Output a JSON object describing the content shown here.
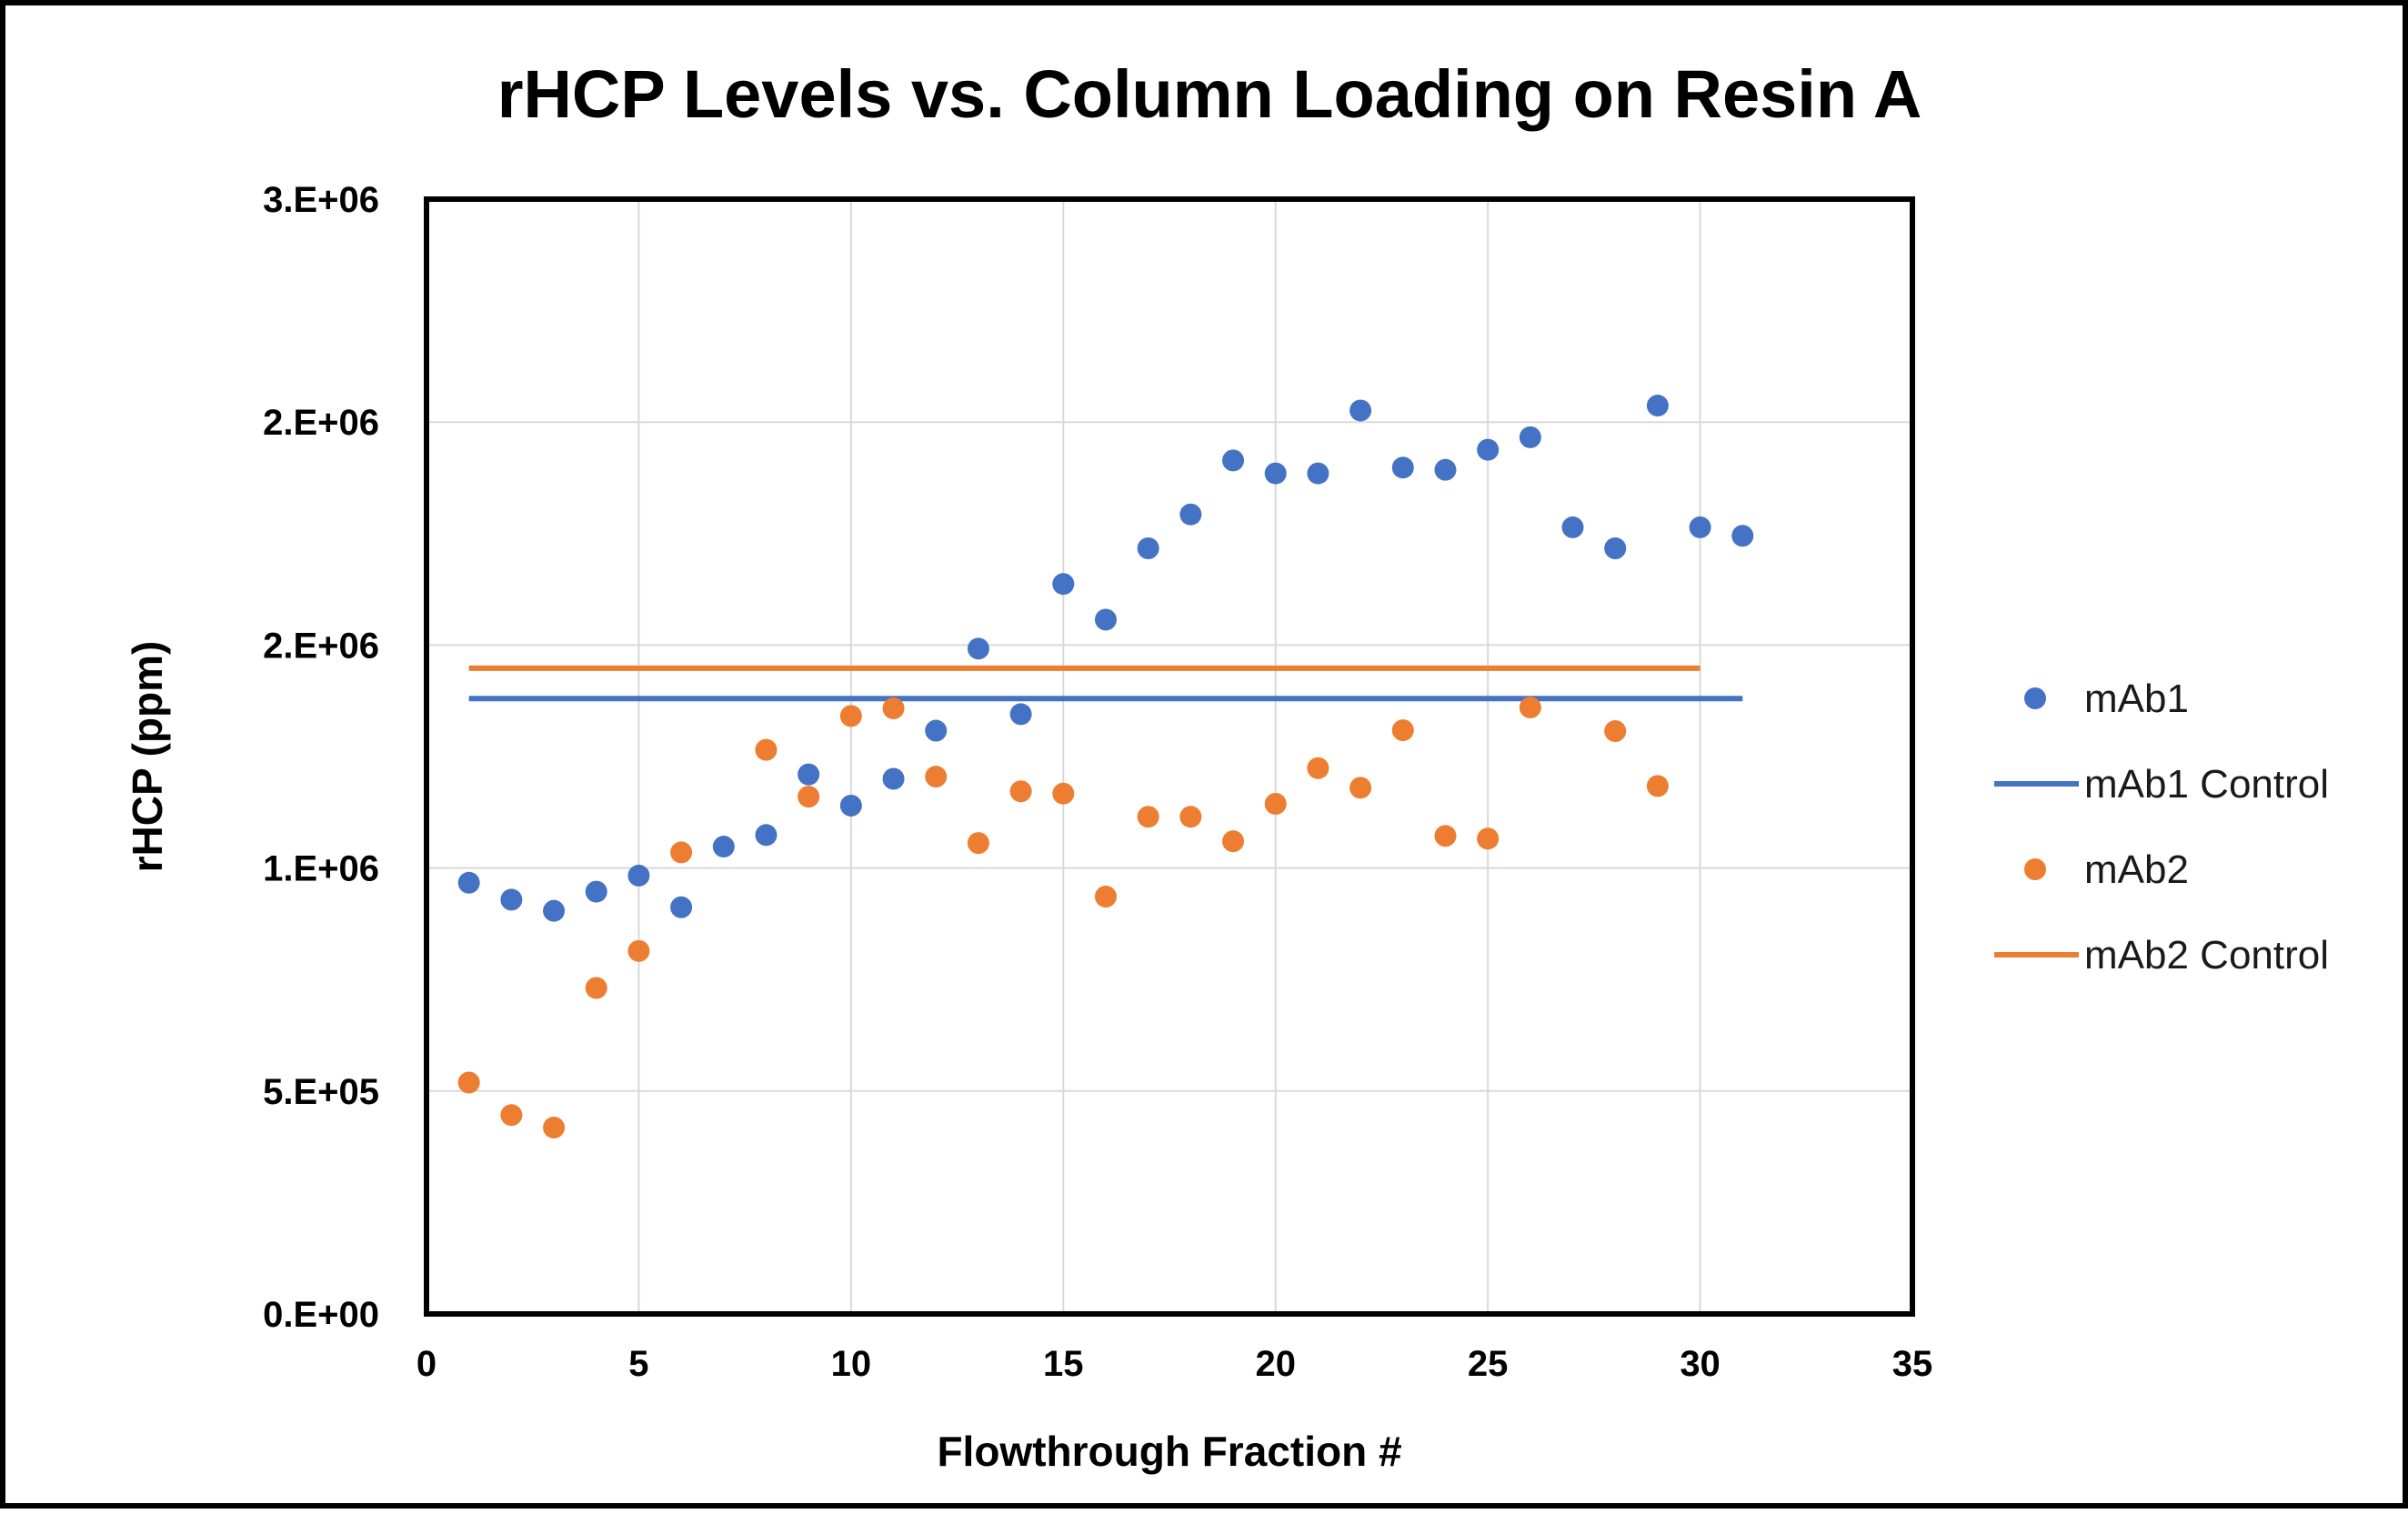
{
  "chart_data": {
    "type": "scatter",
    "title": "rHCP Levels vs. Column Loading on Resin A",
    "xlabel": "Flowthrough Fraction #",
    "ylabel": "rHCP (ppm)",
    "xlim": [
      0,
      35
    ],
    "ylim": [
      0,
      2500000
    ],
    "x_ticks": [
      0,
      5,
      10,
      15,
      20,
      25,
      30,
      35
    ],
    "x_tick_labels": [
      "0",
      "5",
      "10",
      "15",
      "20",
      "25",
      "30",
      "35"
    ],
    "y_ticks": [
      0,
      500000,
      1000000,
      1500000,
      2000000,
      2500000
    ],
    "y_tick_labels": [
      "0.E+00",
      "5.E+05",
      "1.E+06",
      "2.E+06",
      "2.E+06",
      "3.E+06"
    ],
    "grid": true,
    "legend_position": "right",
    "series": [
      {
        "name": "mAb1",
        "kind": "scatter",
        "color": "#4472C4",
        "x": [
          1,
          2,
          3,
          4,
          5,
          6,
          7,
          8,
          9,
          10,
          11,
          12,
          13,
          14,
          15,
          16,
          17,
          18,
          19,
          20,
          21,
          22,
          23,
          24,
          25,
          26,
          27,
          28,
          29,
          30,
          31
        ],
        "y": [
          967000,
          929000,
          904000,
          947000,
          983000,
          912000,
          1048000,
          1074000,
          1210000,
          1140000,
          1200000,
          1308000,
          1492000,
          1345000,
          1637000,
          1557000,
          1717000,
          1793000,
          1914000,
          1885000,
          1885000,
          2026000,
          1898000,
          1893000,
          1938000,
          1966000,
          1764000,
          1717000,
          2037000,
          1764000,
          1745000
        ]
      },
      {
        "name": "mAb1 Control",
        "kind": "line",
        "color": "#4472C4",
        "x": [
          1,
          31
        ],
        "y": [
          1380000,
          1380000
        ]
      },
      {
        "name": "mAb2",
        "kind": "scatter",
        "color": "#ED7D31",
        "x": [
          1,
          2,
          3,
          4,
          5,
          6,
          8,
          9,
          10,
          11,
          12,
          13,
          14,
          15,
          16,
          17,
          18,
          19,
          20,
          21,
          22,
          23,
          24,
          25,
          26,
          28,
          29
        ],
        "y": [
          519000,
          446000,
          418000,
          731000,
          814000,
          1035000,
          1265000,
          1160000,
          1341000,
          1358000,
          1205000,
          1056000,
          1172000,
          1167000,
          936000,
          1115000,
          1115000,
          1060000,
          1144000,
          1224000,
          1180000,
          1309000,
          1072000,
          1066000,
          1360000,
          1307000,
          1184000
        ]
      },
      {
        "name": "mAb2 Control",
        "kind": "line",
        "color": "#ED7D31",
        "x": [
          1,
          30
        ],
        "y": [
          1448000,
          1448000
        ]
      }
    ]
  }
}
